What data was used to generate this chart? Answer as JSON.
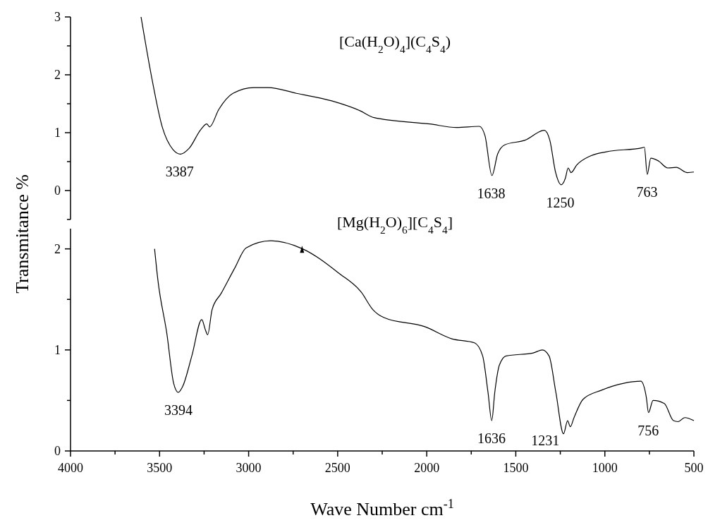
{
  "chart_data": [
    {
      "type": "line",
      "title": "[Ca(H$_{2}$O)$_{4}$](C$_{4}$S$_{4}$)",
      "tick_labels": "y",
      "xlim": [
        4000,
        500
      ],
      "ylim": [
        -0.5,
        3
      ],
      "yticks": [
        {
          "value": -0.5,
          "label": null
        },
        0,
        {
          "value": 0.5,
          "label": null
        },
        1,
        {
          "value": 1.5,
          "label": null
        },
        2,
        {
          "value": 2.5,
          "label": null
        },
        3
      ],
      "series": [
        {
          "color": "#000000",
          "x": [
            3604,
            3544,
            3485,
            3425,
            3382,
            3334,
            3267,
            3235,
            3219,
            3168,
            3088,
            2970,
            2890,
            2732,
            2534,
            2375,
            2296,
            1983,
            1832,
            1705,
            1673,
            1634,
            1602,
            1562,
            1448,
            1340,
            1309,
            1277,
            1245,
            1222,
            1206,
            1190,
            1158,
            1079,
            992,
            790,
            778,
            762,
            742,
            698,
            647,
            599,
            536,
            500
          ],
          "values": [
            3.0,
            1.95,
            1.1,
            0.71,
            0.63,
            0.73,
            1.06,
            1.15,
            1.1,
            1.4,
            1.68,
            1.78,
            1.78,
            1.68,
            1.55,
            1.38,
            1.26,
            1.15,
            1.09,
            1.11,
            0.95,
            0.26,
            0.63,
            0.79,
            0.87,
            1.04,
            0.87,
            0.32,
            0.1,
            0.21,
            0.39,
            0.31,
            0.44,
            0.6,
            0.67,
            0.74,
            0.75,
            0.28,
            0.56,
            0.51,
            0.39,
            0.4,
            0.31,
            0.32
          ]
        }
      ],
      "annotations": [
        {
          "text": "3387",
          "x": 3387,
          "y": 0.63
        },
        {
          "text": "1638",
          "x": 1638,
          "y": 0.26
        },
        {
          "text": "1250",
          "x": 1250,
          "y": 0.1
        },
        {
          "text": "763",
          "x": 763,
          "y": 0.28
        }
      ]
    },
    {
      "type": "line",
      "title": "[Mg(H$_{2}$O)$_{6}$][C$_{4}$S$_{4}$]",
      "xlabel": "Wave Number cm$^{-1}$",
      "ylabel": "Transmitance %",
      "xlim": [
        4000,
        500
      ],
      "xticks": [
        4000,
        {
          "value": 3750,
          "label": null
        },
        3500,
        {
          "value": 3250,
          "label": null
        },
        3000,
        {
          "value": 2750,
          "label": null
        },
        2500,
        {
          "value": 2250,
          "label": null
        },
        2000,
        {
          "value": 1750,
          "label": null
        },
        1500,
        {
          "value": 1250,
          "label": null
        },
        1000,
        {
          "value": 750,
          "label": null
        },
        500
      ],
      "ylim": [
        0,
        2.2
      ],
      "yticks": [
        0,
        {
          "value": 0.5,
          "label": null
        },
        1,
        {
          "value": 1.5,
          "label": null
        },
        2
      ],
      "series": [
        {
          "color": "#000000",
          "x": [
            3528,
            3510,
            3459,
            3421,
            3395,
            3370,
            3319,
            3263,
            3243,
            3230,
            3205,
            3154,
            3078,
            3014,
            2875,
            2697,
            2494,
            2367,
            2303,
            2240,
            2011,
            1859,
            1732,
            1686,
            1656,
            1635,
            1618,
            1592,
            1554,
            1402,
            1351,
            1313,
            1275,
            1232,
            1209,
            1194,
            1173,
            1123,
            1021,
            894,
            798,
            767,
            755,
            729,
            666,
            615,
            589,
            551,
            500
          ],
          "values": [
            2.0,
            1.7,
            1.16,
            0.67,
            0.58,
            0.64,
            0.94,
            1.3,
            1.2,
            1.15,
            1.4,
            1.56,
            1.81,
            2.01,
            2.08,
            2.0,
            1.76,
            1.57,
            1.4,
            1.32,
            1.23,
            1.11,
            1.07,
            0.94,
            0.58,
            0.3,
            0.58,
            0.85,
            0.94,
            0.97,
            1.0,
            0.94,
            0.58,
            0.17,
            0.3,
            0.24,
            0.33,
            0.51,
            0.6,
            0.67,
            0.69,
            0.53,
            0.38,
            0.5,
            0.47,
            0.3,
            0.29,
            0.33,
            0.3
          ]
        }
      ],
      "annotations": [
        {
          "text": "3394",
          "x": 3394,
          "y": 0.58
        },
        {
          "text": "1636",
          "x": 1636,
          "y": 0.3
        },
        {
          "text": "1231",
          "x": 1231,
          "y": 0.17
        },
        {
          "text": "756",
          "x": 756,
          "y": 0.38
        }
      ]
    }
  ]
}
